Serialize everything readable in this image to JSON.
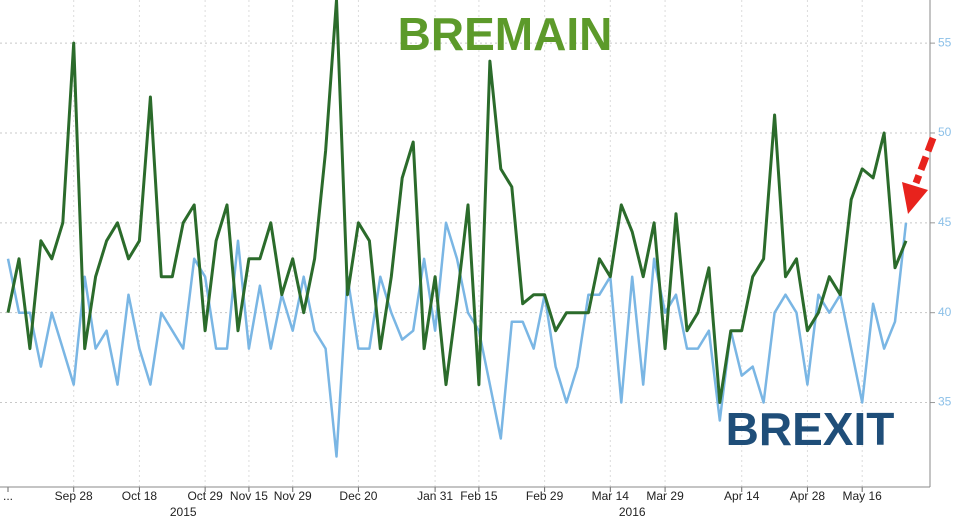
{
  "chart_data": {
    "type": "line",
    "categories": [
      "...",
      null,
      null,
      null,
      null,
      null,
      "Sep 28",
      null,
      null,
      null,
      null,
      null,
      "Oct 18",
      null,
      null,
      null,
      null,
      null,
      "Oct 29",
      null,
      null,
      null,
      "Nov 15",
      null,
      null,
      null,
      "Nov 29",
      null,
      null,
      null,
      null,
      null,
      "Dec 20",
      null,
      null,
      null,
      null,
      null,
      null,
      "Jan 31",
      null,
      null,
      null,
      "Feb 15",
      null,
      null,
      null,
      null,
      null,
      "Feb 29",
      null,
      null,
      null,
      null,
      null,
      "Mar 14",
      null,
      null,
      null,
      null,
      "Mar 29",
      null,
      null,
      null,
      null,
      null,
      null,
      "Apr 14",
      null,
      null,
      null,
      null,
      null,
      "Apr 28",
      null,
      null,
      null,
      null,
      "May 16",
      null,
      null,
      null,
      null
    ],
    "years": [
      "2015",
      "2016"
    ],
    "series": [
      {
        "name": "BREMAIN",
        "color": "#2b6b2b",
        "label_color": "#5c9a2a",
        "values": [
          40,
          43,
          38,
          44,
          43,
          45,
          55,
          38,
          42,
          44,
          45,
          43,
          44,
          52,
          42,
          42,
          45,
          46,
          39,
          44,
          46,
          39,
          43,
          43,
          45,
          41,
          43,
          40,
          43,
          49,
          57.4,
          41,
          45,
          44,
          38,
          42,
          47.5,
          49.5,
          38,
          42,
          36,
          40.7,
          46,
          36,
          54,
          48,
          47,
          40.5,
          41,
          41,
          39,
          40,
          40,
          40,
          43,
          42,
          46,
          44.5,
          42,
          45,
          38,
          45.5,
          39,
          40,
          42.5,
          35,
          39,
          39,
          42,
          43,
          51,
          42,
          43,
          39,
          40,
          42,
          41,
          46.3,
          48,
          47.5,
          50,
          42.5,
          44
        ]
      },
      {
        "name": "BREXIT",
        "color": "#7ab6e4",
        "label_color": "#1f4e79",
        "values": [
          43,
          40,
          40,
          37,
          40,
          38,
          36,
          42,
          38,
          39,
          36,
          41,
          38,
          36,
          40,
          39,
          38,
          43,
          42,
          38,
          38,
          44,
          38,
          41.5,
          38,
          41,
          39,
          42,
          39,
          38,
          32,
          42,
          38,
          38,
          42,
          40,
          38.5,
          39,
          43,
          39,
          45,
          43,
          40,
          39,
          36,
          33,
          39.5,
          39.5,
          38,
          41,
          37,
          35,
          37,
          41,
          41,
          42,
          35,
          42,
          36,
          43,
          40,
          41,
          38,
          38,
          39,
          34,
          39,
          36.5,
          37,
          35,
          40,
          41,
          40,
          36,
          41,
          40,
          41,
          38,
          35,
          40.5,
          38,
          39.5,
          45
        ]
      }
    ],
    "ylim": [
      30.3,
      57.4
    ],
    "yticks": [
      35,
      40,
      45,
      50,
      55
    ],
    "grid": true
  }
}
